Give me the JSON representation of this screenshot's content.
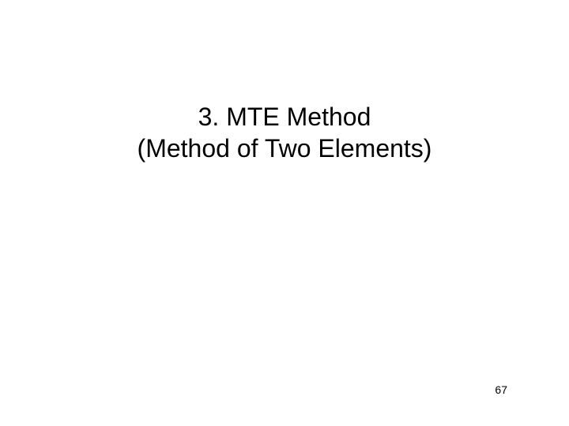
{
  "slide": {
    "title_line1": "3. MTE Method",
    "title_line2": "(Method of Two Elements)",
    "page_number": "67",
    "background_color": "#ffffff",
    "text_color": "#000000",
    "title_fontsize": 32,
    "page_number_fontsize": 14,
    "font_family": "Arial"
  }
}
